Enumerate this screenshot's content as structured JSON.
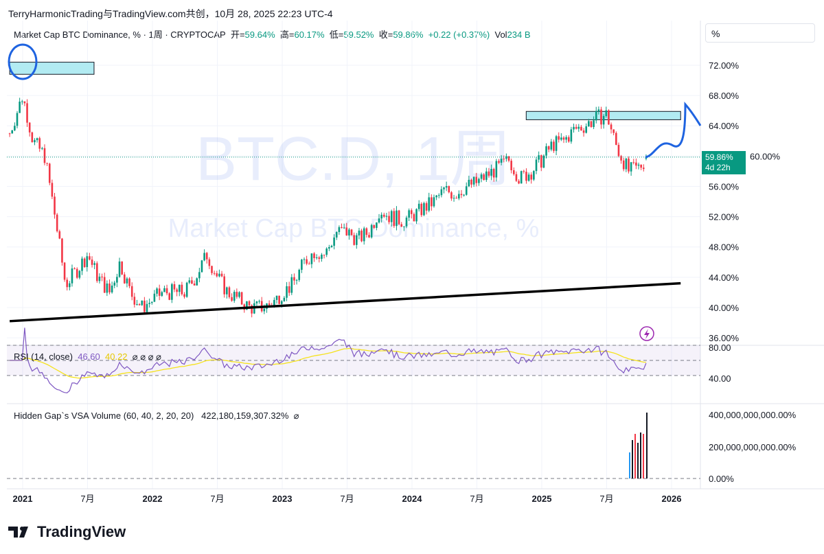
{
  "attribution": "TerryHarmonicTrading与TradingView.com共创，10月 28, 2025 22:23 UTC-4",
  "legend": {
    "title": "Market Cap BTC Dominance, % · 1周 · CRYPTOCAP",
    "open_label": "开=",
    "open": "59.64%",
    "high_label": "高=",
    "high": "60.17%",
    "low_label": "低=",
    "low": "59.52%",
    "close_label": "收=",
    "close": "59.86%",
    "change": "+0.22 (+0.37%)",
    "vol_label": "Vol",
    "vol": "234 B"
  },
  "scale_button": "%",
  "watermark": {
    "symbol": "BTC.D, 1周",
    "name": "Market Cap BTC Dominance, %"
  },
  "price_tag": {
    "value": "59.86%",
    "countdown": "4d 22h"
  },
  "rsi": {
    "label": "RSI (14, close)",
    "value": "46.60",
    "ma": "40.22",
    "na": "⌀ ⌀ ⌀ ⌀",
    "ticks": [
      "80.00",
      "40.00"
    ]
  },
  "volume": {
    "label": "Hidden Gap`s VSA Volume (60, 40, 2, 20, 20)",
    "value": "422,180,159,307.32%",
    "na": "⌀",
    "ticks": [
      "400,000,000,000.00%",
      "200,000,000,000.00%",
      "0.00%"
    ]
  },
  "logo": "TradingView",
  "chart_data": {
    "type": "candlestick",
    "title": "Market Cap BTC Dominance, % · 1周",
    "y_ticks": [
      72,
      68,
      64,
      60,
      56,
      52,
      48,
      44,
      40,
      36
    ],
    "y_tick_labels": [
      "72.00%",
      "68.00%",
      "64.00%",
      "60.00%",
      "56.00%",
      "52.00%",
      "48.00%",
      "44.00%",
      "40.00%",
      "36.00%"
    ],
    "x_tick_labels": [
      {
        "t": 2021,
        "label": "2021"
      },
      {
        "t": 2021.5,
        "label": "7月"
      },
      {
        "t": 2022,
        "label": "2022"
      },
      {
        "t": 2022.5,
        "label": "7月"
      },
      {
        "t": 2023,
        "label": "2023"
      },
      {
        "t": 2023.5,
        "label": "7月"
      },
      {
        "t": 2024,
        "label": "2024"
      },
      {
        "t": 2024.5,
        "label": "7月"
      },
      {
        "t": 2025,
        "label": "2025"
      },
      {
        "t": 2025.5,
        "label": "7月"
      },
      {
        "t": 2026,
        "label": "2026"
      }
    ],
    "monthly_close_approx": [
      [
        2020.9,
        63
      ],
      [
        2021.0,
        68
      ],
      [
        2021.08,
        62
      ],
      [
        2021.17,
        60
      ],
      [
        2021.25,
        52
      ],
      [
        2021.33,
        43
      ],
      [
        2021.42,
        45
      ],
      [
        2021.5,
        47
      ],
      [
        2021.58,
        44
      ],
      [
        2021.67,
        42
      ],
      [
        2021.75,
        46
      ],
      [
        2021.83,
        42
      ],
      [
        2021.92,
        40
      ],
      [
        2022.0,
        41
      ],
      [
        2022.08,
        42
      ],
      [
        2022.17,
        42
      ],
      [
        2022.25,
        42
      ],
      [
        2022.33,
        44
      ],
      [
        2022.42,
        47
      ],
      [
        2022.5,
        44
      ],
      [
        2022.58,
        42
      ],
      [
        2022.67,
        41
      ],
      [
        2022.75,
        40
      ],
      [
        2022.83,
        40
      ],
      [
        2022.92,
        40.5
      ],
      [
        2023.0,
        42
      ],
      [
        2023.08,
        43
      ],
      [
        2023.17,
        46
      ],
      [
        2023.25,
        47.5
      ],
      [
        2023.33,
        47
      ],
      [
        2023.42,
        50
      ],
      [
        2023.5,
        50
      ],
      [
        2023.58,
        49
      ],
      [
        2023.67,
        50
      ],
      [
        2023.75,
        53
      ],
      [
        2023.83,
        52
      ],
      [
        2023.92,
        51.5
      ],
      [
        2024.0,
        52
      ],
      [
        2024.08,
        53
      ],
      [
        2024.17,
        54
      ],
      [
        2024.25,
        55.5
      ],
      [
        2024.33,
        55
      ],
      [
        2024.42,
        56
      ],
      [
        2024.5,
        56.5
      ],
      [
        2024.58,
        57.5
      ],
      [
        2024.67,
        58.5
      ],
      [
        2024.75,
        59.5
      ],
      [
        2024.83,
        57
      ],
      [
        2024.92,
        58
      ],
      [
        2025.0,
        59.5
      ],
      [
        2025.08,
        61.5
      ],
      [
        2025.17,
        62
      ],
      [
        2025.25,
        63.5
      ],
      [
        2025.33,
        64
      ],
      [
        2025.42,
        65
      ],
      [
        2025.5,
        65.5
      ],
      [
        2025.58,
        61
      ],
      [
        2025.67,
        58
      ],
      [
        2025.75,
        58.5
      ],
      [
        2025.82,
        59.86
      ]
    ],
    "last": {
      "open": 59.64,
      "high": 60.17,
      "low": 59.52,
      "close": 59.86
    },
    "zones": [
      {
        "from": 2020.9,
        "to": 2021.55,
        "low": 70.8,
        "high": 72.4
      },
      {
        "from": 2024.88,
        "to": 2026.07,
        "low": 64.8,
        "high": 65.9
      }
    ],
    "trendline": [
      [
        2020.9,
        38.2
      ],
      [
        2026.07,
        43.2
      ]
    ],
    "colors": {
      "up": "#089981",
      "down": "#f23645",
      "rsi": "#7e57c2",
      "rsi_ma": "#f5e21b",
      "zone": "#b2ebf2",
      "drawing": "#1e63e0"
    }
  }
}
